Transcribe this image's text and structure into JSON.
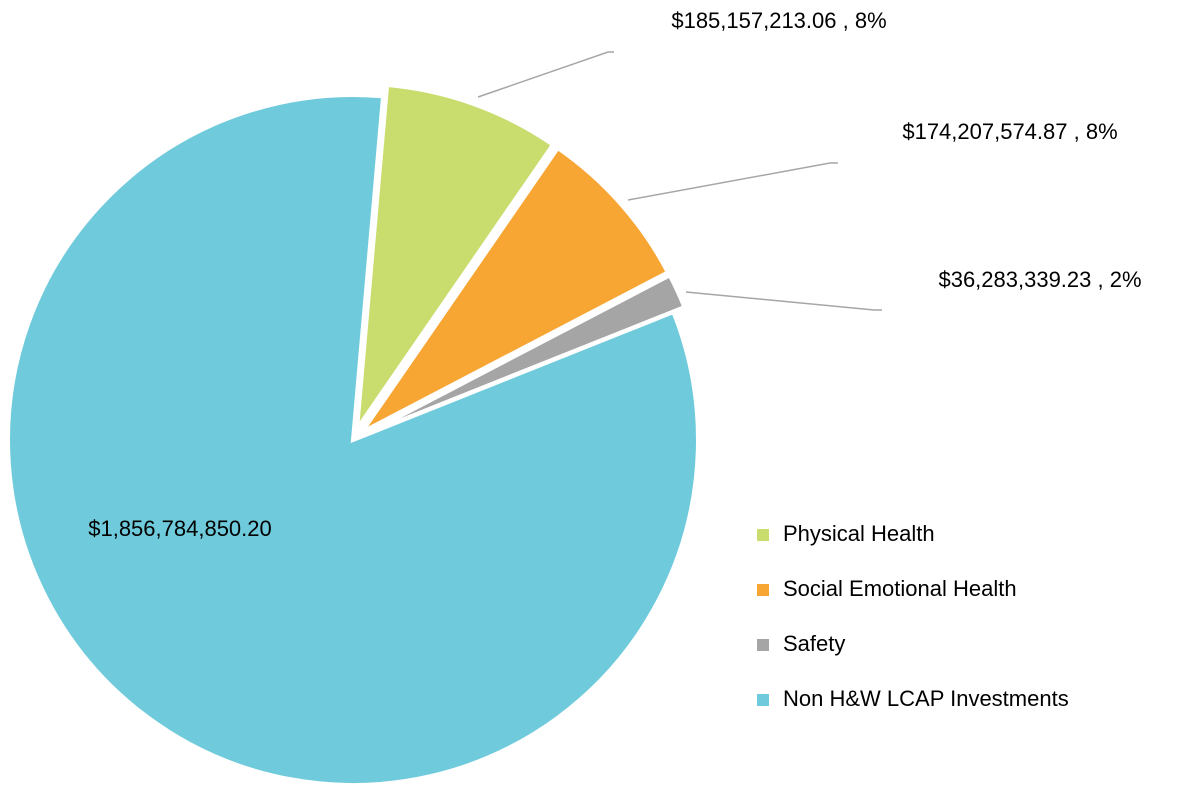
{
  "chart_data": {
    "type": "pie",
    "categories": [
      "Physical Health",
      "Social Emotional Health",
      "Safety",
      "Non H&W LCAP Investments"
    ],
    "values": [
      185157213.06,
      174207574.87,
      36283339.23,
      1856784850.2
    ],
    "value_labels": [
      "$185,157,213.06 , 8%",
      "$174,207,574.87 , 8%",
      "$36,283,339.23 , 2%",
      "$1,856,784,850.20"
    ],
    "colors": [
      "#c9dc6e",
      "#f7a533",
      "#a5a5a5",
      "#6fcbdc"
    ],
    "legend": "right"
  }
}
